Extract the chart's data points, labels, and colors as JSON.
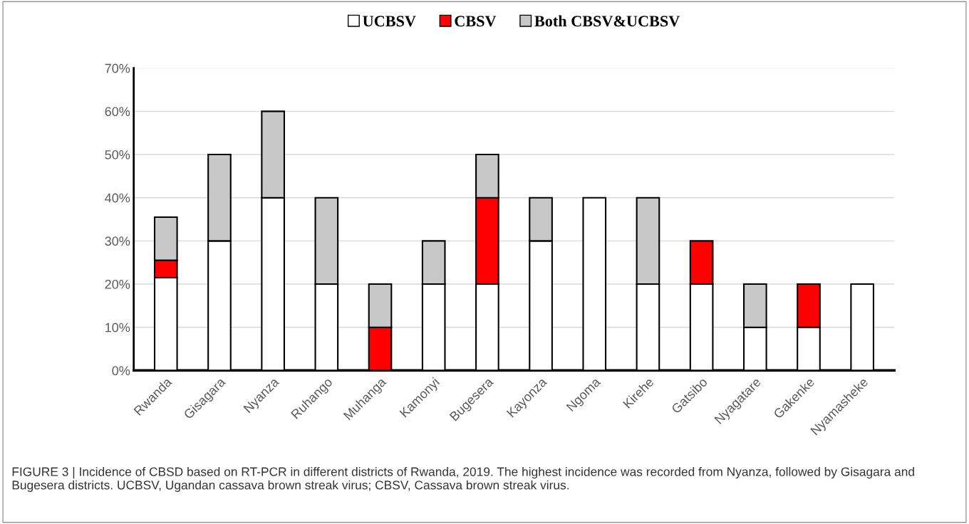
{
  "chart_data": {
    "type": "bar",
    "stacked": true,
    "categories": [
      "Rwanda",
      "Gisagara",
      "Nyanza",
      "Ruhango",
      "Muhanga",
      "Kamonyi",
      "Bugesera",
      "Kayonza",
      "Ngoma",
      "Kirehe",
      "Gatsibo",
      "Nyagatare",
      "Gakenke",
      "Nyamasheke"
    ],
    "series": [
      {
        "name": "UCBSV",
        "color": "#ffffff",
        "values": [
          21.5,
          30,
          40,
          20,
          0,
          20,
          20,
          30,
          40,
          20,
          20,
          10,
          10,
          20
        ]
      },
      {
        "name": "CBSV",
        "color": "#ff0000",
        "values": [
          4,
          0,
          0,
          0,
          10,
          0,
          20,
          0,
          0,
          0,
          10,
          0,
          10,
          0
        ]
      },
      {
        "name": "Both CBSV&UCBSV",
        "color": "#c8c8c8",
        "values": [
          10,
          20,
          20,
          20,
          10,
          10,
          10,
          10,
          0,
          20,
          0,
          10,
          0,
          0
        ]
      }
    ],
    "ylim": [
      0,
      70
    ],
    "yticks": [
      {
        "value": 0,
        "label": "0%"
      },
      {
        "value": 10,
        "label": "10%"
      },
      {
        "value": 20,
        "label": "20%"
      },
      {
        "value": 30,
        "label": "30%"
      },
      {
        "value": 40,
        "label": "40%"
      },
      {
        "value": 50,
        "label": "50%"
      },
      {
        "value": 60,
        "label": "60%"
      },
      {
        "value": 70,
        "label": "70%"
      }
    ],
    "grid": "y",
    "legend": "top",
    "annotations": [
      "FIGURE 3 | Incidence of CBSD based on RT-PCR in different districts of Rwanda, 2019. The highest incidence was recorded from Nyanza, followed by Gisagara and Bugesera districts. UCBSV, Ugandan cassava brown streak virus; CBSV, Cassava brown streak virus."
    ]
  }
}
